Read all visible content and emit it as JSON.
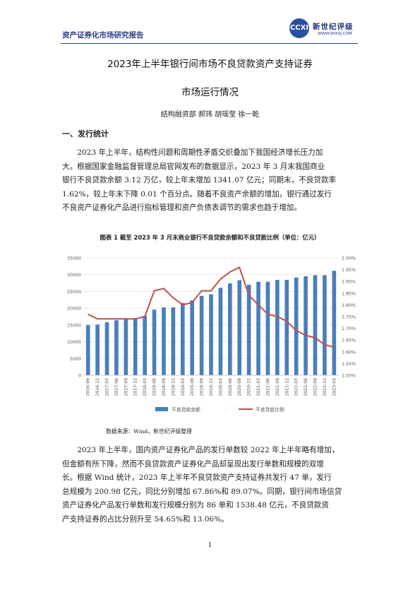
{
  "header": {
    "title": "资产证券化市场研究报告"
  },
  "logo": {
    "mark": "CCXI",
    "name": "新世纪评级",
    "url": "WWW.SHXSJ.COM"
  },
  "doc": {
    "title_line1": "2023年上半年银行间市场不良贷款资产支持证券",
    "title_line2": "市场运行情况",
    "authors": "结构融资部  郝玮  胡瑶莹  徐一乾",
    "section1": "一、发行统计",
    "para1": [
      "2023 年上半年，结构性问题和周期性矛盾交织叠加下我国经济增长压力加",
      "大。根据国家金融监督管理总局官网发布的数据显示，2023 年 3 月末我国商业",
      "银行不良贷款余额 3.12 万亿，较上年末增加 1341.07 亿元；同期末，不良贷款率",
      "1.62%，较上年末下降 0.01 个百分点。随着不良资产余额的增加，银行通过发行",
      "不良资产证券化产品进行指标管理和资产负债表调节的需求也趋于增加。"
    ],
    "figure_caption": "图表 1  截至 2023 年 3 月末商业银行不良贷款余额和不良贷款比例（单位：亿元）",
    "source": "数据来源：Wind，新世纪评级整理",
    "para2": [
      "2023 年上半年，国内资产证券化产品的发行单数较 2022 年上半年略有增加，",
      "但金额有所下降，然而不良贷款资产证券化产品却呈现出发行单数和规模的双增",
      "长。根据 Wind 统计，2023 年上半年不良贷款资产支持证券共发行 47 单，发行",
      "总规模为 200.98 亿元，同比分别增加 67.86%和 89.07%。同期，银行间市场信贷",
      "资产证券化产品发行单数和发行规模分别为 86 单和 1538.48 亿元，不良贷款资",
      "产支持证券的占比分别升至 54.65%和 13.06%。"
    ],
    "page_number": "1"
  },
  "chart_data": {
    "type": "bar+line",
    "categories": [
      "2016-09",
      "2016-12",
      "2017-03",
      "2017-06",
      "2017-09",
      "2017-12",
      "2018-03",
      "2018-06",
      "2018-09",
      "2018-12",
      "2019-03",
      "2019-06",
      "2019-09",
      "2019-12",
      "2020-03",
      "2020-06",
      "2020-09",
      "2020-12",
      "2021-03",
      "2021-06",
      "2021-09",
      "2021-12",
      "2022-03",
      "2022-06",
      "2022-09",
      "2022-12",
      "2023-03"
    ],
    "series": [
      {
        "name": "不良贷款余额",
        "axis": "left",
        "type": "bar",
        "color": "#4a7ebb",
        "values": [
          14940,
          15120,
          15795,
          16380,
          16700,
          17060,
          17740,
          19570,
          20250,
          20250,
          21570,
          22350,
          23670,
          24140,
          26100,
          27400,
          28350,
          27010,
          27880,
          27900,
          28440,
          28470,
          29140,
          29550,
          29840,
          29820,
          31160
        ]
      },
      {
        "name": "不良贷款比例",
        "axis": "right",
        "type": "line",
        "color": "#c0504d",
        "values": [
          1.76,
          1.74,
          1.74,
          1.74,
          1.74,
          1.74,
          1.75,
          1.86,
          1.87,
          1.83,
          1.8,
          1.81,
          1.86,
          1.86,
          1.91,
          1.94,
          1.96,
          1.84,
          1.8,
          1.76,
          1.75,
          1.73,
          1.69,
          1.67,
          1.66,
          1.63,
          1.62
        ]
      }
    ],
    "y_left": {
      "min": 0,
      "max": 35000,
      "ticks": [
        "0",
        "5000",
        "10000",
        "15000",
        "20000",
        "25000",
        "30000",
        "35000"
      ]
    },
    "y_right": {
      "min": 1.5,
      "max": 2.0,
      "ticks": [
        "1.50%",
        "1.55%",
        "1.60%",
        "1.65%",
        "1.70%",
        "1.75%",
        "1.80%",
        "1.85%",
        "1.90%",
        "1.95%",
        "2.00%"
      ]
    },
    "grid": true,
    "legend": "bottom"
  }
}
